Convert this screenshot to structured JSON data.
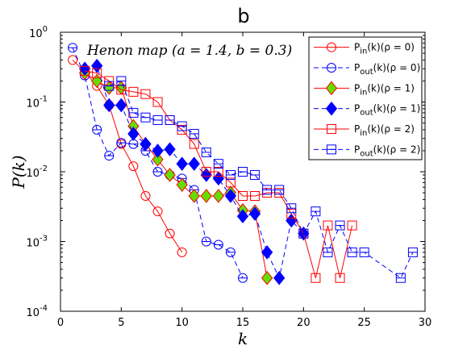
{
  "chart_data": {
    "type": "line",
    "title": "b",
    "annotation": "Henon map (a = 1.4, b = 0.3)",
    "xlabel": "k",
    "ylabel": "P(k)",
    "xlim": [
      0,
      30
    ],
    "ylim": [
      0.0001,
      1
    ],
    "yscale": "log",
    "x_ticks": [
      "0",
      "5",
      "10",
      "15",
      "20",
      "25",
      "30"
    ],
    "y_ticks": [
      {
        "base": "10",
        "exp": "0"
      },
      {
        "base": "10",
        "exp": "-1"
      },
      {
        "base": "10",
        "exp": "-2"
      },
      {
        "base": "10",
        "exp": "-3"
      },
      {
        "base": "10",
        "exp": "-4"
      }
    ],
    "legend_position": "top-right",
    "grid": false,
    "series": [
      {
        "name_main": "P",
        "name_sub": "in",
        "name_rest": "(k)(ρ = 0)",
        "color": "#ff0000",
        "line": "solid",
        "marker": "circle-open",
        "x": [
          1,
          2,
          3,
          4,
          5,
          6,
          7,
          8,
          9,
          10
        ],
        "y": [
          0.4,
          0.27,
          0.17,
          0.09,
          0.025,
          0.012,
          0.0045,
          0.0027,
          0.0013,
          0.0007
        ]
      },
      {
        "name_main": "P",
        "name_sub": "out",
        "name_rest": "(k)(ρ = 0)",
        "color": "#0000ff",
        "line": "dashed",
        "marker": "circle-line",
        "x": [
          1,
          2,
          3,
          4,
          5,
          6,
          7,
          8,
          9,
          10,
          11,
          12,
          13,
          14,
          15
        ],
        "y": [
          0.6,
          0.24,
          0.04,
          0.017,
          0.026,
          0.025,
          0.02,
          0.01,
          0.009,
          0.008,
          0.0055,
          0.001,
          0.0009,
          0.0007,
          0.0003
        ]
      },
      {
        "name_main": "P",
        "name_sub": "in",
        "name_rest": "(k)(ρ = 1)",
        "color": "#ff0000",
        "line": "solid",
        "marker": "diamond-filled",
        "fill": "#66dd00",
        "x": [
          2,
          3,
          4,
          5,
          6,
          7,
          8,
          9,
          10,
          11,
          12,
          13,
          14,
          15,
          16,
          17
        ],
        "y": [
          0.26,
          0.2,
          0.16,
          0.16,
          0.045,
          0.025,
          0.015,
          0.009,
          0.0065,
          0.0045,
          0.0045,
          0.0045,
          0.005,
          0.0028,
          0.0027,
          0.0003
        ]
      },
      {
        "name_main": "P",
        "name_sub": "out",
        "name_rest": "(k)(ρ = 1)",
        "color": "#0000ff",
        "line": "dashed",
        "marker": "diamond-filled",
        "fill": "#0000ff",
        "x": [
          2,
          3,
          4,
          5,
          6,
          7,
          8,
          9,
          10,
          11,
          12,
          13,
          14,
          15,
          16,
          17,
          18,
          19,
          20
        ],
        "y": [
          0.3,
          0.33,
          0.09,
          0.09,
          0.035,
          0.025,
          0.02,
          0.021,
          0.013,
          0.013,
          0.009,
          0.008,
          0.0045,
          0.0023,
          0.0025,
          0.0007,
          0.0003,
          0.002,
          0.0013
        ]
      },
      {
        "name_main": "P",
        "name_sub": "in",
        "name_rest": "(k)(ρ = 2)",
        "color": "#ff0000",
        "line": "solid",
        "marker": "square-open",
        "x": [
          2,
          3,
          4,
          5,
          6,
          7,
          8,
          9,
          10,
          11,
          12,
          13,
          14,
          15,
          16,
          17,
          18,
          19,
          20,
          21,
          22,
          23,
          24
        ],
        "y": [
          0.28,
          0.26,
          0.2,
          0.15,
          0.14,
          0.13,
          0.1,
          0.055,
          0.04,
          0.025,
          0.01,
          0.01,
          0.007,
          0.0045,
          0.0045,
          0.005,
          0.005,
          0.0025,
          0.0013,
          0.0003,
          0.0017,
          0.0003,
          0.0017
        ]
      },
      {
        "name_main": "P",
        "name_sub": "out",
        "name_rest": "(k)(ρ = 2)",
        "color": "#0000ff",
        "line": "dashed",
        "marker": "square-line",
        "x": [
          4,
          5,
          6,
          7,
          8,
          9,
          10,
          11,
          12,
          13,
          14,
          15,
          16,
          17,
          18,
          19,
          20,
          21,
          22,
          23,
          24,
          25,
          28,
          29
        ],
        "y": [
          0.17,
          0.2,
          0.07,
          0.06,
          0.055,
          0.055,
          0.045,
          0.035,
          0.019,
          0.013,
          0.009,
          0.01,
          0.009,
          0.0055,
          0.0055,
          0.003,
          0.0013,
          0.0027,
          0.0007,
          0.0017,
          0.0007,
          0.0007,
          0.0003,
          0.0007
        ]
      }
    ]
  }
}
